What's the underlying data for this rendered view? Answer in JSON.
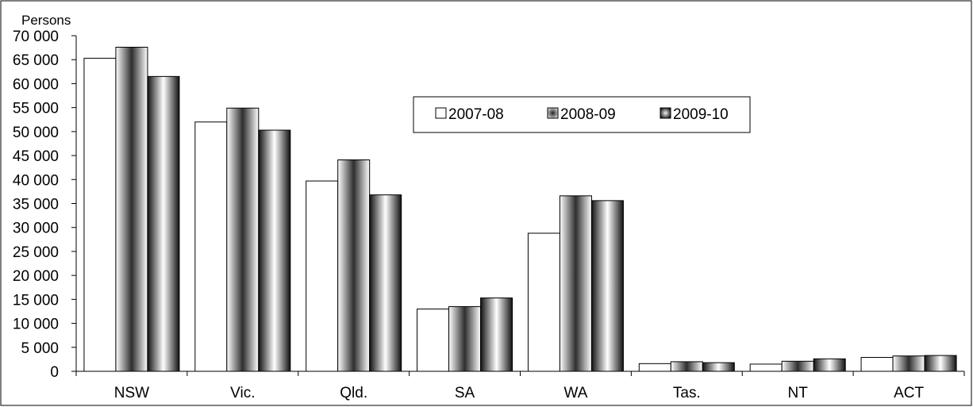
{
  "chart_data": {
    "type": "bar",
    "title": "",
    "xlabel": "",
    "ylabel": "Persons",
    "ylim": [
      0,
      70000
    ],
    "ytick_step": 5000,
    "yticks": [
      "0",
      "5 000",
      "10 000",
      "15 000",
      "20 000",
      "25 000",
      "30 000",
      "35 000",
      "40 000",
      "45 000",
      "50 000",
      "55 000",
      "60 000",
      "65 000",
      "70 000"
    ],
    "categories": [
      "NSW",
      "Vic.",
      "Qld.",
      "SA",
      "WA",
      "Tas.",
      "NT",
      "ACT"
    ],
    "series": [
      {
        "name": "2007-08",
        "values": [
          65300,
          52000,
          39700,
          13000,
          28800,
          1600,
          1500,
          2900
        ]
      },
      {
        "name": "2008-09",
        "values": [
          67600,
          54900,
          44100,
          13500,
          36600,
          2000,
          2100,
          3200
        ]
      },
      {
        "name": "2009-10",
        "values": [
          61500,
          50300,
          36800,
          15300,
          35600,
          1800,
          2600,
          3300
        ]
      }
    ],
    "grid": false,
    "legend_position": "top-center"
  }
}
